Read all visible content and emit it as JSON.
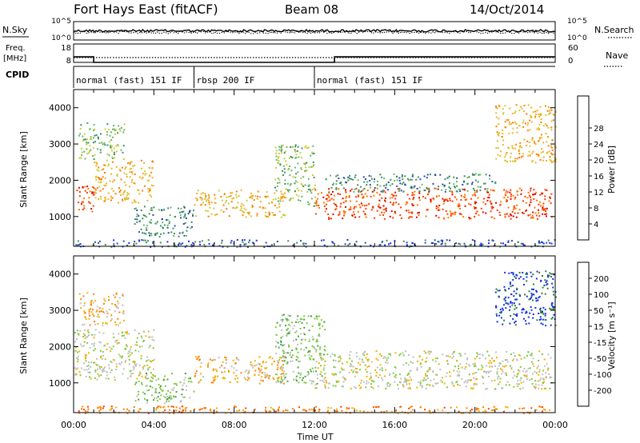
{
  "header": {
    "station": "Fort Hays East (fitACF)",
    "beam": "Beam 08",
    "date": "14/Oct/2014"
  },
  "noise_panel": {
    "left_label": "N.Sky",
    "right_label": "N.Search",
    "left_ticks": [
      "10^5",
      "10^0"
    ],
    "right_ticks": [
      "10^5",
      "10^0"
    ]
  },
  "freq_panel": {
    "left_label_line1": "Freq.",
    "left_label_line2": "[MHz]",
    "left_ticks": [
      "18",
      "8"
    ],
    "right_label": "Nave",
    "right_ticks": [
      "60",
      "0"
    ],
    "freq_segments": [
      {
        "t0": 0,
        "t1": 1.0,
        "value": 11
      },
      {
        "t0": 1.0,
        "t1": 13.0,
        "value": 8
      },
      {
        "t0": 13.0,
        "t1": 24,
        "value": 11
      }
    ],
    "freq_range": [
      8,
      18
    ]
  },
  "cpid": {
    "label": "CPID",
    "modes": [
      {
        "t0": 0,
        "t1": 6,
        "text": "normal (fast) 151 IF"
      },
      {
        "t0": 6,
        "t1": 12,
        "text": "rbsp 200 IF"
      },
      {
        "t0": 12,
        "t1": 24,
        "text": "normal (fast) 151 IF"
      }
    ]
  },
  "colors": {
    "power": [
      "#1a2aff",
      "#2a4da6",
      "#3d8f5a",
      "#66b86a",
      "#cccc33",
      "#f0b02a",
      "#ff7a00",
      "#ff3a00",
      "#e00000"
    ],
    "velocity": [
      "#1530e0",
      "#2a7f3a",
      "#46a046",
      "#7ccc3c",
      "#c0c0c0",
      "#f4b000",
      "#ff8000",
      "#ff4000",
      "#e00000"
    ]
  },
  "chart_data": [
    {
      "type": "heatmap",
      "name": "power",
      "ylabel": "Slant Range [km]",
      "colorbar_label": "Power [dB]",
      "colorbar_ticks": [
        "4",
        "8",
        "12",
        "16",
        "20",
        "24",
        "28"
      ],
      "xlim": [
        0,
        24
      ],
      "ylim": [
        180,
        4500
      ],
      "yticks": [
        "1000",
        "2000",
        "3000",
        "4000"
      ],
      "scatter_bands": [
        {
          "t0": 0.0,
          "t1": 1.0,
          "r0": 1150,
          "r1": 1900,
          "level": 7
        },
        {
          "t0": 1.0,
          "t1": 4.0,
          "r0": 1400,
          "r1": 2600,
          "level": 5
        },
        {
          "t0": 0.2,
          "t1": 2.5,
          "r0": 2600,
          "r1": 3600,
          "level": 3
        },
        {
          "t0": 3.0,
          "t1": 6.0,
          "r0": 450,
          "r1": 1300,
          "level": 2
        },
        {
          "t0": 6.0,
          "t1": 10.5,
          "r0": 1000,
          "r1": 1750,
          "level": 5
        },
        {
          "t0": 10.0,
          "t1": 12.0,
          "r0": 1300,
          "r1": 3000,
          "level": 3
        },
        {
          "t0": 12.0,
          "t1": 23.8,
          "r0": 950,
          "r1": 1800,
          "level": 7
        },
        {
          "t0": 12.5,
          "t1": 21.0,
          "r0": 1700,
          "r1": 2200,
          "level": 2
        },
        {
          "t0": 21.0,
          "t1": 24.0,
          "r0": 2500,
          "r1": 4100,
          "level": 5
        },
        {
          "t0": 0.0,
          "t1": 24.0,
          "r0": 180,
          "r1": 380,
          "level": 1
        }
      ]
    },
    {
      "type": "heatmap",
      "name": "velocity",
      "ylabel": "Slant Range [km]",
      "colorbar_label": "Velocity [m s⁻¹]",
      "colorbar_ticks": [
        "200",
        "100",
        "50",
        "15",
        "-15",
        "-50",
        "-100",
        "-200"
      ],
      "xlim": [
        0,
        24
      ],
      "ylim": [
        180,
        4500
      ],
      "yticks": [
        "1000",
        "2000",
        "3000",
        "4000"
      ],
      "xticks": [
        "00:00",
        "04:00",
        "08:00",
        "12:00",
        "16:00",
        "20:00",
        "00:00"
      ],
      "xlabel": "Time UT",
      "scatter_bands": [
        {
          "t0": 0.0,
          "t1": 4.0,
          "r0": 1100,
          "r1": 2500,
          "level": 4
        },
        {
          "t0": 0.2,
          "t1": 2.5,
          "r0": 2600,
          "r1": 3500,
          "level": 5
        },
        {
          "t0": 3.0,
          "t1": 6.0,
          "r0": 450,
          "r1": 1300,
          "level": 3
        },
        {
          "t0": 6.0,
          "t1": 10.5,
          "r0": 1000,
          "r1": 1750,
          "level": 5
        },
        {
          "t0": 10.0,
          "t1": 12.5,
          "r0": 1000,
          "r1": 2900,
          "level": 3
        },
        {
          "t0": 12.0,
          "t1": 23.8,
          "r0": 850,
          "r1": 1900,
          "level": 4
        },
        {
          "t0": 21.0,
          "t1": 24.0,
          "r0": 2600,
          "r1": 4100,
          "level": 0
        },
        {
          "t0": 0.0,
          "t1": 24.0,
          "r0": 180,
          "r1": 380,
          "level": 6
        }
      ]
    }
  ]
}
